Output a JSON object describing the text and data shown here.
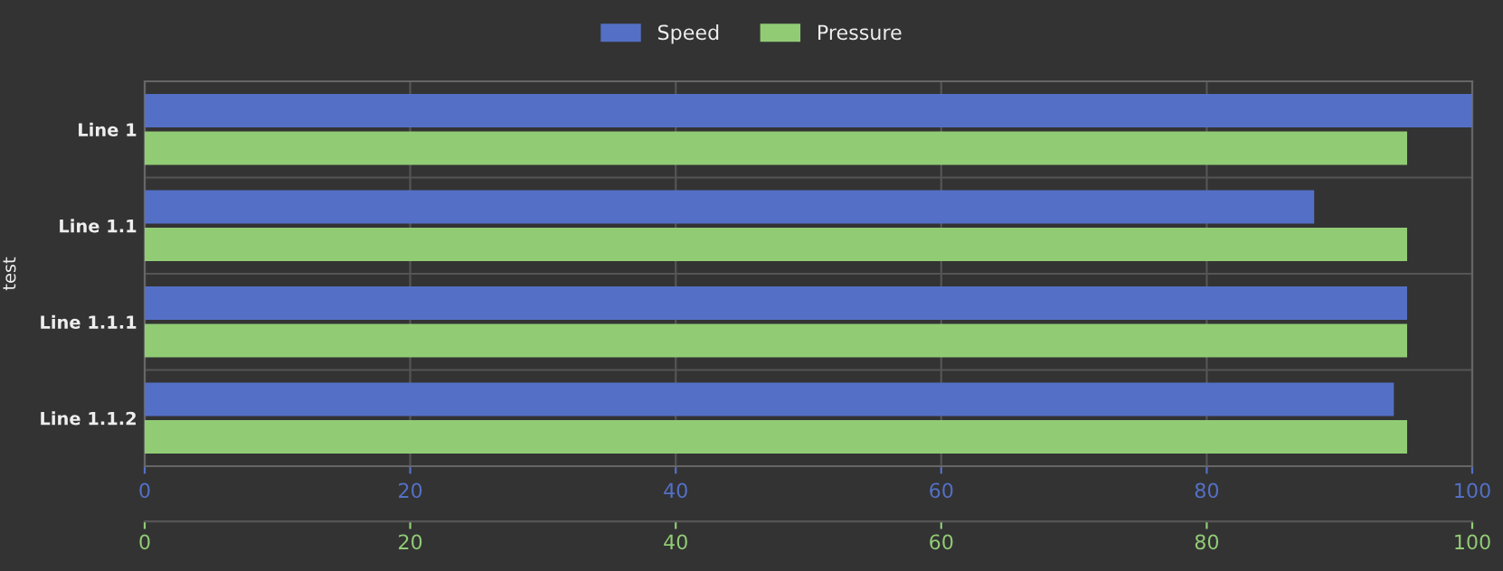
{
  "chart_data": {
    "type": "bar",
    "orientation": "horizontal",
    "ylabel": "test",
    "categories": [
      "Line 1",
      "Line 1.1",
      "Line 1.1.1",
      "Line 1.1.2"
    ],
    "series": [
      {
        "name": "Speed",
        "color": "#5470c6",
        "values": [
          100,
          88,
          95,
          94
        ]
      },
      {
        "name": "Pressure",
        "color": "#91cc75",
        "axis": "x2",
        "values": [
          95,
          95,
          95,
          95
        ]
      }
    ],
    "xlim": [
      0,
      100
    ],
    "xticks": [
      0,
      20,
      40,
      60,
      80,
      100
    ],
    "x2lim": [
      0,
      100
    ],
    "x2ticks": [
      0,
      20,
      40,
      60,
      80,
      100
    ],
    "grid": true,
    "legend": "top"
  }
}
